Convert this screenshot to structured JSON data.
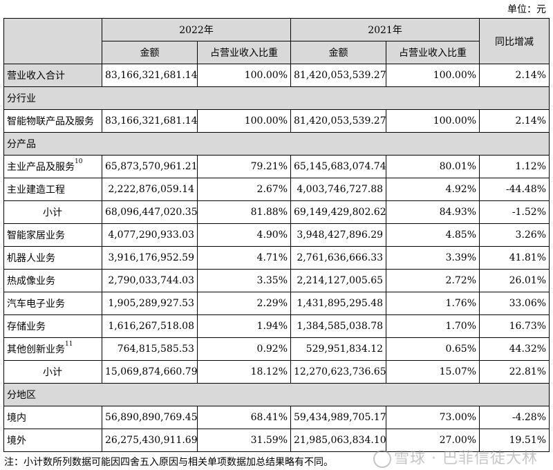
{
  "unit": "单位：元",
  "header": {
    "year_2022": "2022年",
    "year_2021": "2021年",
    "amount": "金额",
    "share": "占营业收入比重",
    "yoy": "同比增减"
  },
  "rows": [
    {
      "type": "total",
      "label": "营业收入合计",
      "a22": "83,166,321,681.14",
      "s22": "100.00%",
      "a21": "81,420,053,539.27",
      "s21": "100.00%",
      "yoy": "2.14%"
    },
    {
      "type": "section",
      "label": "分行业"
    },
    {
      "type": "data",
      "label": "智能物联产品及服务",
      "a22": "83,166,321,681.14",
      "s22": "100.00%",
      "a21": "81,420,053,539.27",
      "s21": "100.00%",
      "yoy": "2.14%"
    },
    {
      "type": "section",
      "label": "分产品"
    },
    {
      "type": "data",
      "label": "主业产品及服务",
      "sup": "10",
      "a22": "65,873,570,961.21",
      "s22": "79.21%",
      "a21": "65,145,683,074.74",
      "s21": "80.01%",
      "yoy": "1.12%"
    },
    {
      "type": "data",
      "label": "主业建造工程",
      "a22": "2,222,876,059.14",
      "s22": "2.67%",
      "a21": "4,003,746,727.88",
      "s21": "4.92%",
      "yoy": "-44.48%"
    },
    {
      "type": "subtotal",
      "label": "小计",
      "a22": "68,096,447,020.35",
      "s22": "81.88%",
      "a21": "69,149,429,802.62",
      "s21": "84.93%",
      "yoy": "-1.52%"
    },
    {
      "type": "data",
      "label": "智能家居业务",
      "a22": "4,077,290,933.03",
      "s22": "4.90%",
      "a21": "3,948,427,896.29",
      "s21": "4.85%",
      "yoy": "3.26%"
    },
    {
      "type": "data",
      "label": "机器人业务",
      "a22": "3,916,176,952.59",
      "s22": "4.71%",
      "a21": "2,761,636,666.33",
      "s21": "3.39%",
      "yoy": "41.81%"
    },
    {
      "type": "data",
      "label": "热成像业务",
      "a22": "2,790,033,744.03",
      "s22": "3.35%",
      "a21": "2,214,127,005.65",
      "s21": "2.72%",
      "yoy": "26.01%"
    },
    {
      "type": "data",
      "label": "汽车电子业务",
      "a22": "1,905,289,927.53",
      "s22": "2.29%",
      "a21": "1,431,895,295.48",
      "s21": "1.76%",
      "yoy": "33.06%"
    },
    {
      "type": "data",
      "label": "存储业务",
      "a22": "1,616,267,518.08",
      "s22": "1.94%",
      "a21": "1,384,585,038.78",
      "s21": "1.70%",
      "yoy": "16.73%"
    },
    {
      "type": "data",
      "label": "其他创新业务",
      "sup": "11",
      "a22": "764,815,585.53",
      "s22": "0.92%",
      "a21": "529,951,834.12",
      "s21": "0.65%",
      "yoy": "44.32%"
    },
    {
      "type": "subtotal",
      "label": "小计",
      "a22": "15,069,874,660.79",
      "s22": "18.12%",
      "a21": "12,270,623,736.65",
      "s21": "15.07%",
      "yoy": "22.81%"
    },
    {
      "type": "section",
      "label": "分地区"
    },
    {
      "type": "data",
      "label": "境内",
      "a22": "56,890,890,769.45",
      "s22": "68.41%",
      "a21": "59,434,989,705.17",
      "s21": "73.00%",
      "yoy": "-4.28%"
    },
    {
      "type": "data",
      "label": "境外",
      "a22": "26,275,430,911.69",
      "s22": "31.59%",
      "a21": "21,985,063,834.10",
      "s21": "27.00%",
      "yoy": "19.51%"
    }
  ],
  "note": "注：小计数所列数据可能因四舍五入原因与相关单项数据加总结果略有不同。",
  "watermark": "雪球 · 巴菲信徒大林"
}
